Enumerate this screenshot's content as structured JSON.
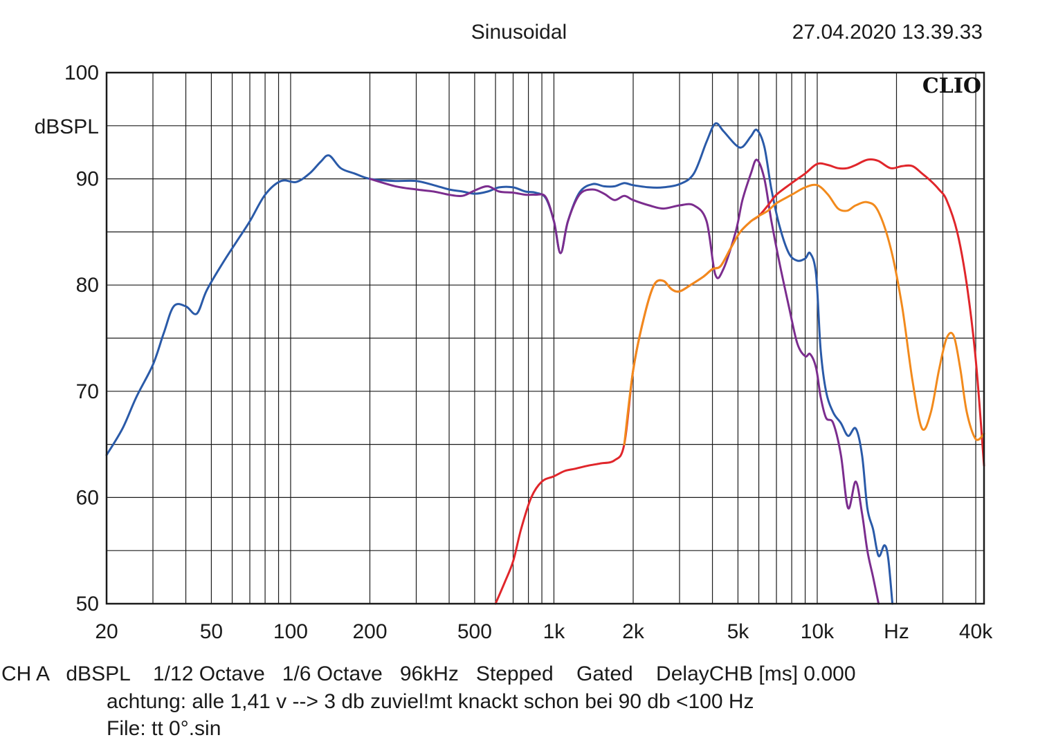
{
  "header": {
    "title": "Sinusoidal",
    "timestamp": "27.04.2020 13.39.33",
    "brand": "CLIO"
  },
  "footer": {
    "line1": "CH A   dBSPL    1/12 Octave   1/6 Octave   96kHz   Stepped    Gated    DelayCHB [ms] 0.000",
    "line2": "achtung: alle 1,41 v --> 3 db zuviel!mt knackt schon bei 90 db <100 Hz",
    "line3": "File: tt 0°.sin"
  },
  "chart_data": {
    "type": "line",
    "title": "Sinusoidal",
    "ylabel": "dBSPL",
    "xlabel": "Hz",
    "xscale": "log",
    "xlim": [
      20,
      43000
    ],
    "ylim": [
      50,
      100
    ],
    "grid": true,
    "y_ticks": [
      {
        "value": 100,
        "label": "100"
      },
      {
        "value": 90,
        "label": "90"
      },
      {
        "value": 80,
        "label": "80"
      },
      {
        "value": 70,
        "label": "70"
      },
      {
        "value": 60,
        "label": "60"
      },
      {
        "value": 50,
        "label": "50"
      }
    ],
    "x_ticks": [
      {
        "value": 20,
        "label": "20"
      },
      {
        "value": 50,
        "label": "50"
      },
      {
        "value": 100,
        "label": "100"
      },
      {
        "value": 200,
        "label": "200"
      },
      {
        "value": 500,
        "label": "500"
      },
      {
        "value": 1000,
        "label": "1k"
      },
      {
        "value": 2000,
        "label": "2k"
      },
      {
        "value": 5000,
        "label": "5k"
      },
      {
        "value": 10000,
        "label": "10k"
      },
      {
        "value": 20000,
        "label": "Hz"
      },
      {
        "value": 40000,
        "label": "40k"
      }
    ],
    "series": [
      {
        "color": "#2a5aa8",
        "points": [
          [
            20,
            64
          ],
          [
            23,
            66.5
          ],
          [
            26,
            69.5
          ],
          [
            30,
            72.5
          ],
          [
            33,
            75.5
          ],
          [
            36,
            78
          ],
          [
            40,
            78
          ],
          [
            44,
            77.3
          ],
          [
            48,
            79.5
          ],
          [
            55,
            82
          ],
          [
            62,
            84
          ],
          [
            70,
            86
          ],
          [
            80,
            88.5
          ],
          [
            92,
            89.8
          ],
          [
            105,
            89.7
          ],
          [
            118,
            90.5
          ],
          [
            130,
            91.6
          ],
          [
            140,
            92.2
          ],
          [
            155,
            91
          ],
          [
            175,
            90.5
          ],
          [
            200,
            90
          ],
          [
            250,
            89.8
          ],
          [
            300,
            89.8
          ],
          [
            350,
            89.4
          ],
          [
            400,
            89
          ],
          [
            450,
            88.8
          ],
          [
            500,
            88.6
          ],
          [
            560,
            88.8
          ],
          [
            620,
            89.2
          ],
          [
            700,
            89.2
          ],
          [
            780,
            88.8
          ],
          [
            850,
            88.7
          ],
          [
            930,
            88.2
          ],
          [
            1000,
            86
          ],
          [
            1060,
            83
          ],
          [
            1130,
            86
          ],
          [
            1250,
            88.7
          ],
          [
            1400,
            89.5
          ],
          [
            1550,
            89.3
          ],
          [
            1700,
            89.3
          ],
          [
            1850,
            89.6
          ],
          [
            2000,
            89.4
          ],
          [
            2300,
            89.2
          ],
          [
            2600,
            89.2
          ],
          [
            3000,
            89.5
          ],
          [
            3400,
            90.5
          ],
          [
            3800,
            93.5
          ],
          [
            4100,
            95.2
          ],
          [
            4400,
            94.5
          ],
          [
            4900,
            93.2
          ],
          [
            5200,
            93
          ],
          [
            5600,
            94
          ],
          [
            5900,
            94.6
          ],
          [
            6300,
            93
          ],
          [
            6700,
            89
          ],
          [
            7200,
            85.5
          ],
          [
            7800,
            83
          ],
          [
            8400,
            82.3
          ],
          [
            9000,
            82.5
          ],
          [
            9400,
            83
          ],
          [
            9900,
            81
          ],
          [
            10300,
            74
          ],
          [
            10800,
            70
          ],
          [
            11500,
            68
          ],
          [
            12300,
            67
          ],
          [
            13100,
            65.8
          ],
          [
            14000,
            66.5
          ],
          [
            14800,
            64
          ],
          [
            15500,
            59
          ],
          [
            16300,
            57
          ],
          [
            17100,
            54.5
          ],
          [
            18000,
            55.5
          ],
          [
            18600,
            54.3
          ],
          [
            19300,
            50
          ]
        ]
      },
      {
        "color": "#7b2d8e",
        "points": [
          [
            200,
            90
          ],
          [
            250,
            89.3
          ],
          [
            300,
            89
          ],
          [
            350,
            88.8
          ],
          [
            400,
            88.5
          ],
          [
            450,
            88.4
          ],
          [
            500,
            88.9
          ],
          [
            560,
            89.3
          ],
          [
            620,
            88.8
          ],
          [
            700,
            88.7
          ],
          [
            780,
            88.5
          ],
          [
            850,
            88.5
          ],
          [
            930,
            88.3
          ],
          [
            1000,
            86
          ],
          [
            1060,
            83
          ],
          [
            1130,
            86
          ],
          [
            1250,
            88.5
          ],
          [
            1400,
            89
          ],
          [
            1550,
            88.6
          ],
          [
            1700,
            88
          ],
          [
            1850,
            88.4
          ],
          [
            2000,
            88
          ],
          [
            2300,
            87.5
          ],
          [
            2600,
            87.2
          ],
          [
            3000,
            87.5
          ],
          [
            3400,
            87.5
          ],
          [
            3800,
            86
          ],
          [
            4100,
            81
          ],
          [
            4400,
            81.5
          ],
          [
            4900,
            85
          ],
          [
            5200,
            88
          ],
          [
            5600,
            90.5
          ],
          [
            5900,
            91.8
          ],
          [
            6300,
            90
          ],
          [
            6700,
            86
          ],
          [
            7200,
            82
          ],
          [
            7800,
            78
          ],
          [
            8400,
            74.5
          ],
          [
            9000,
            73.3
          ],
          [
            9400,
            73.5
          ],
          [
            9900,
            72.2
          ],
          [
            10300,
            69.5
          ],
          [
            10800,
            67.5
          ],
          [
            11500,
            67
          ],
          [
            12300,
            64
          ],
          [
            13100,
            59
          ],
          [
            14000,
            61.5
          ],
          [
            14800,
            58.5
          ],
          [
            15500,
            55
          ],
          [
            16300,
            52.5
          ],
          [
            17100,
            50
          ]
        ]
      },
      {
        "color": "#e0262b",
        "points": [
          [
            600,
            50
          ],
          [
            650,
            52
          ],
          [
            700,
            54
          ],
          [
            750,
            57
          ],
          [
            820,
            60
          ],
          [
            900,
            61.5
          ],
          [
            1000,
            62
          ],
          [
            1100,
            62.5
          ],
          [
            1200,
            62.7
          ],
          [
            1350,
            63
          ],
          [
            1500,
            63.2
          ],
          [
            1700,
            63.5
          ],
          [
            1850,
            65
          ],
          [
            2000,
            72
          ],
          [
            2200,
            77
          ],
          [
            2400,
            80
          ],
          [
            2600,
            80.4
          ],
          [
            2800,
            79.6
          ],
          [
            3000,
            79.4
          ],
          [
            3300,
            80
          ],
          [
            3700,
            80.8
          ],
          [
            4000,
            81.5
          ],
          [
            4300,
            81.8
          ],
          [
            4700,
            83.5
          ],
          [
            5100,
            85
          ],
          [
            5600,
            86
          ],
          [
            6000,
            86.5
          ],
          [
            6500,
            87.5
          ],
          [
            7000,
            88.5
          ],
          [
            8000,
            89.6
          ],
          [
            9000,
            90.5
          ],
          [
            10000,
            91.4
          ],
          [
            11000,
            91.3
          ],
          [
            12000,
            91
          ],
          [
            13000,
            91
          ],
          [
            14000,
            91.3
          ],
          [
            15500,
            91.8
          ],
          [
            17000,
            91.7
          ],
          [
            19000,
            91
          ],
          [
            21000,
            91.2
          ],
          [
            23000,
            91.2
          ],
          [
            25000,
            90.5
          ],
          [
            27000,
            89.8
          ],
          [
            29000,
            89
          ],
          [
            31000,
            88
          ],
          [
            34000,
            85
          ],
          [
            37000,
            80
          ],
          [
            40000,
            73
          ],
          [
            43000,
            63
          ]
        ]
      },
      {
        "color": "#f28a1c",
        "points": [
          [
            1850,
            65
          ],
          [
            2000,
            72
          ],
          [
            2200,
            77
          ],
          [
            2400,
            80
          ],
          [
            2600,
            80.4
          ],
          [
            2800,
            79.6
          ],
          [
            3000,
            79.4
          ],
          [
            3300,
            80
          ],
          [
            3700,
            80.8
          ],
          [
            4000,
            81.5
          ],
          [
            4300,
            81.8
          ],
          [
            4700,
            83.5
          ],
          [
            5100,
            85
          ],
          [
            5600,
            86
          ],
          [
            6000,
            86.5
          ],
          [
            6500,
            87
          ],
          [
            7000,
            87.7
          ],
          [
            8000,
            88.5
          ],
          [
            9000,
            89.2
          ],
          [
            10000,
            89.4
          ],
          [
            11000,
            88.5
          ],
          [
            12000,
            87.2
          ],
          [
            13000,
            87
          ],
          [
            14000,
            87.5
          ],
          [
            15500,
            87.8
          ],
          [
            17000,
            87
          ],
          [
            19000,
            83.5
          ],
          [
            21000,
            78
          ],
          [
            23000,
            71
          ],
          [
            25000,
            66.5
          ],
          [
            27000,
            68
          ],
          [
            29000,
            72
          ],
          [
            31000,
            75
          ],
          [
            33000,
            75.2
          ],
          [
            35000,
            72
          ],
          [
            37000,
            68
          ],
          [
            40000,
            65.5
          ],
          [
            43000,
            66
          ]
        ]
      }
    ]
  }
}
